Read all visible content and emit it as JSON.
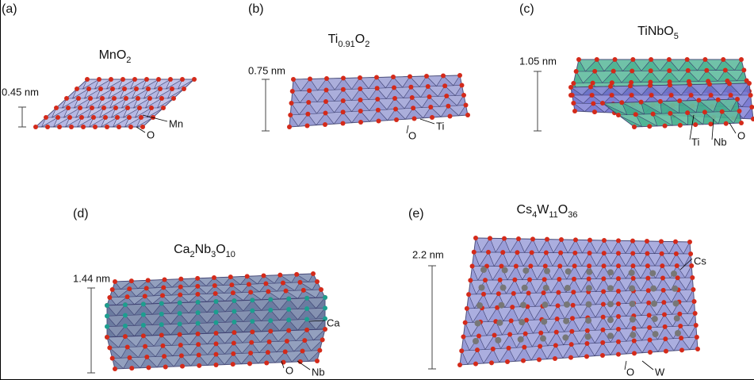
{
  "panels": [
    {
      "label": "(a)",
      "formula": [
        "MnO",
        "2"
      ],
      "thickness": "0.45 nm",
      "atoms": [
        "Mn",
        "O"
      ]
    },
    {
      "label": "(b)",
      "formula": [
        "Ti",
        "0.91",
        "O",
        "2"
      ],
      "thickness": "0.75 nm",
      "atoms": [
        "Ti",
        "O"
      ]
    },
    {
      "label": "(c)",
      "formula": [
        "TiNbO",
        "5"
      ],
      "thickness": "1.05 nm",
      "atoms": [
        "Ti",
        "Nb",
        "O"
      ]
    },
    {
      "label": "(d)",
      "formula": [
        "Ca",
        "2",
        "Nb",
        "3",
        "O",
        "10"
      ],
      "thickness": "1.44 nm",
      "atoms": [
        "Ca",
        "Nb",
        "O"
      ]
    },
    {
      "label": "(e)",
      "formula": [
        "Cs",
        "4",
        "W",
        "11",
        "O",
        "36"
      ],
      "thickness": "2.2 nm",
      "atoms": [
        "Cs",
        "W",
        "O"
      ]
    }
  ]
}
